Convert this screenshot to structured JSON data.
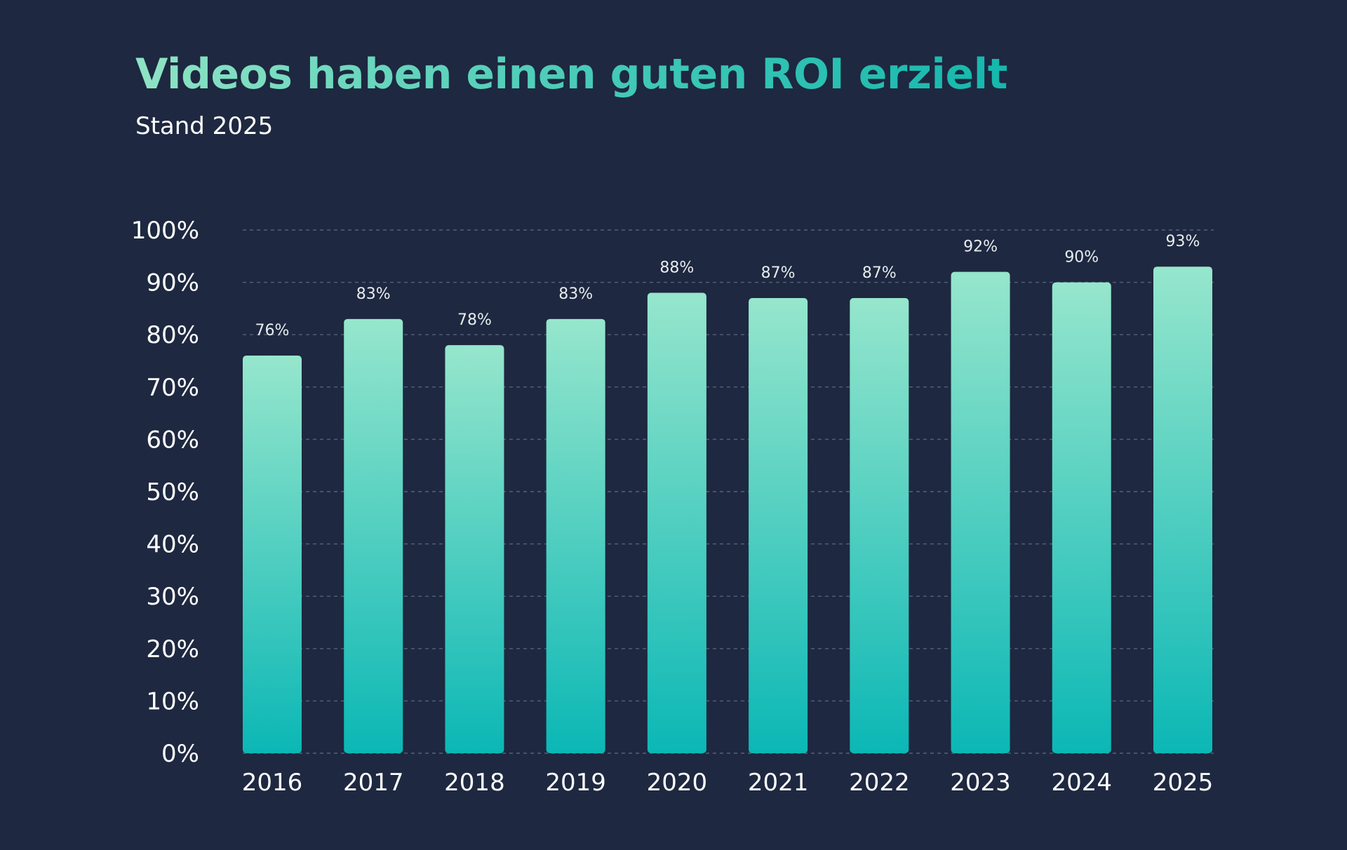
{
  "chart_data": {
    "type": "bar",
    "title": "Videos haben einen guten ROI erzielt",
    "subtitle": "Stand 2025",
    "categories": [
      "2016",
      "2017",
      "2018",
      "2019",
      "2020",
      "2021",
      "2022",
      "2023",
      "2024",
      "2025"
    ],
    "values": [
      76,
      83,
      78,
      83,
      88,
      87,
      87,
      92,
      90,
      93
    ],
    "data_labels": [
      "76%",
      "83%",
      "78%",
      "83%",
      "88%",
      "87%",
      "87%",
      "92%",
      "90%",
      "93%"
    ],
    "yticks": [
      "0%",
      "10%",
      "20%",
      "30%",
      "40%",
      "50%",
      "60%",
      "70%",
      "80%",
      "90%",
      "100%"
    ],
    "ylim": [
      0,
      100
    ],
    "grid": "horizontal dashed",
    "xlabel": "",
    "ylabel": "",
    "colors": {
      "background": "#1e2840",
      "bar_top": "#96e6cc",
      "bar_bottom": "#0bb7b5",
      "title_start": "#8fe3c4",
      "title_end": "#14b8ad",
      "grid": "#56607a",
      "text": "#ffffff"
    }
  }
}
